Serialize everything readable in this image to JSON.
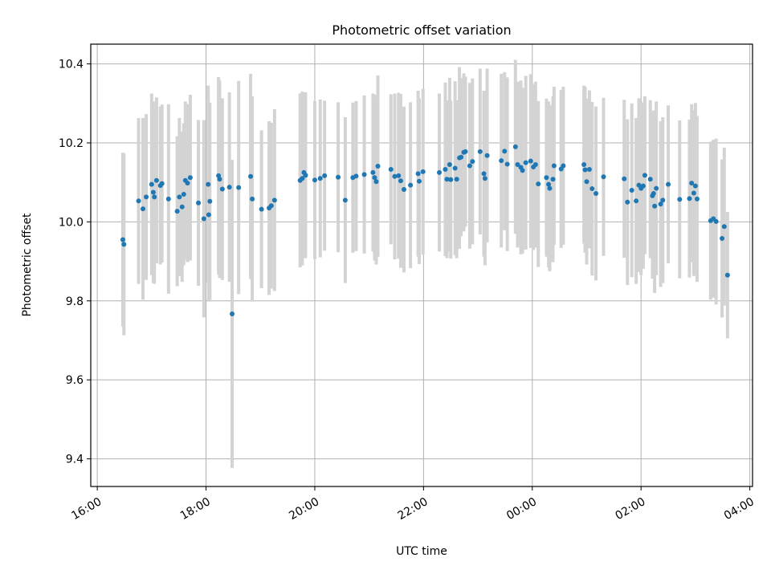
{
  "chart_data": {
    "type": "scatter",
    "title": "Photometric offset variation",
    "xlabel": "UTC time",
    "ylabel": "Photometric offset",
    "x_unit": "hours since 16:00 UTC (axis continues past midnight)",
    "xlim": [
      -0.12,
      12.05
    ],
    "ylim": [
      9.33,
      10.45
    ],
    "grid": true,
    "colors": {
      "points": "#1f77b4",
      "errorbars": "#d3d3d3",
      "grid": "#b0b0b0"
    },
    "x_ticks": [
      {
        "x": 0,
        "label": "16:00"
      },
      {
        "x": 2,
        "label": "18:00"
      },
      {
        "x": 4,
        "label": "20:00"
      },
      {
        "x": 6,
        "label": "22:00"
      },
      {
        "x": 8,
        "label": "00:00"
      },
      {
        "x": 10,
        "label": "02:00"
      },
      {
        "x": 12,
        "label": "04:00"
      }
    ],
    "y_ticks": [
      {
        "y": 9.4,
        "label": "9.4"
      },
      {
        "y": 9.6,
        "label": "9.6"
      },
      {
        "y": 9.8,
        "label": "9.8"
      },
      {
        "y": 10.0,
        "label": "10.0"
      },
      {
        "y": 10.2,
        "label": "10.2"
      },
      {
        "y": 10.4,
        "label": "10.4"
      }
    ],
    "points": [
      [
        0.47,
        9.955,
        0.22
      ],
      [
        0.49,
        9.943,
        0.23
      ],
      [
        0.76,
        10.053,
        0.21
      ],
      [
        0.84,
        10.033,
        0.23
      ],
      [
        0.9,
        10.063,
        0.21
      ],
      [
        1.0,
        10.095,
        0.23
      ],
      [
        1.03,
        10.075,
        0.23
      ],
      [
        1.05,
        10.063,
        0.22
      ],
      [
        1.09,
        10.105,
        0.21
      ],
      [
        1.16,
        10.092,
        0.2
      ],
      [
        1.19,
        10.097,
        0.2
      ],
      [
        1.31,
        10.058,
        0.24
      ],
      [
        1.47,
        10.027,
        0.19
      ],
      [
        1.51,
        10.063,
        0.2
      ],
      [
        1.56,
        10.038,
        0.19
      ],
      [
        1.59,
        10.07,
        0.18
      ],
      [
        1.62,
        10.105,
        0.2
      ],
      [
        1.66,
        10.098,
        0.2
      ],
      [
        1.71,
        10.112,
        0.21
      ],
      [
        1.86,
        10.048,
        0.21
      ],
      [
        1.96,
        10.008,
        0.25
      ],
      [
        2.05,
        10.018,
        0.22
      ],
      [
        2.07,
        10.052,
        0.25
      ],
      [
        2.04,
        10.095,
        0.25
      ],
      [
        2.23,
        10.117,
        0.25
      ],
      [
        2.25,
        10.108,
        0.25
      ],
      [
        2.3,
        10.083,
        0.23
      ],
      [
        2.43,
        10.088,
        0.24
      ],
      [
        2.48,
        9.767,
        0.39
      ],
      [
        2.6,
        10.087,
        0.27
      ],
      [
        2.82,
        10.115,
        0.26
      ],
      [
        2.85,
        10.058,
        0.26
      ],
      [
        3.02,
        10.032,
        0.2
      ],
      [
        3.16,
        10.035,
        0.22
      ],
      [
        3.2,
        10.041,
        0.21
      ],
      [
        3.26,
        10.055,
        0.23
      ],
      [
        3.73,
        10.105,
        0.22
      ],
      [
        3.77,
        10.11,
        0.22
      ],
      [
        3.8,
        10.125,
        0.2
      ],
      [
        3.83,
        10.118,
        0.21
      ],
      [
        4.0,
        10.106,
        0.2
      ],
      [
        4.1,
        10.11,
        0.2
      ],
      [
        4.18,
        10.117,
        0.19
      ],
      [
        4.43,
        10.113,
        0.19
      ],
      [
        4.56,
        10.055,
        0.21
      ],
      [
        4.7,
        10.112,
        0.19
      ],
      [
        4.76,
        10.116,
        0.19
      ],
      [
        4.91,
        10.12,
        0.2
      ],
      [
        5.07,
        10.125,
        0.2
      ],
      [
        5.1,
        10.112,
        0.21
      ],
      [
        5.13,
        10.102,
        0.21
      ],
      [
        5.16,
        10.141,
        0.23
      ],
      [
        5.4,
        10.133,
        0.19
      ],
      [
        5.47,
        10.115,
        0.21
      ],
      [
        5.54,
        10.117,
        0.21
      ],
      [
        5.58,
        10.104,
        0.22
      ],
      [
        5.64,
        10.082,
        0.21
      ],
      [
        5.76,
        10.093,
        0.21
      ],
      [
        5.9,
        10.122,
        0.21
      ],
      [
        5.92,
        10.103,
        0.21
      ],
      [
        5.99,
        10.127,
        0.21
      ],
      [
        6.29,
        10.125,
        0.2
      ],
      [
        6.4,
        10.133,
        0.22
      ],
      [
        6.43,
        10.108,
        0.2
      ],
      [
        6.48,
        10.145,
        0.22
      ],
      [
        6.5,
        10.107,
        0.2
      ],
      [
        6.58,
        10.136,
        0.22
      ],
      [
        6.61,
        10.108,
        0.2
      ],
      [
        6.66,
        10.162,
        0.23
      ],
      [
        6.69,
        10.164,
        0.2
      ],
      [
        6.74,
        10.176,
        0.2
      ],
      [
        6.77,
        10.178,
        0.19
      ],
      [
        6.85,
        10.142,
        0.21
      ],
      [
        6.9,
        10.153,
        0.21
      ],
      [
        7.04,
        10.178,
        0.21
      ],
      [
        7.11,
        10.122,
        0.21
      ],
      [
        7.13,
        10.11,
        0.22
      ],
      [
        7.17,
        10.168,
        0.22
      ],
      [
        7.43,
        10.155,
        0.22
      ],
      [
        7.49,
        10.179,
        0.2
      ],
      [
        7.54,
        10.146,
        0.22
      ],
      [
        7.69,
        10.19,
        0.22
      ],
      [
        7.73,
        10.145,
        0.21
      ],
      [
        7.79,
        10.138,
        0.22
      ],
      [
        7.82,
        10.13,
        0.21
      ],
      [
        7.88,
        10.15,
        0.22
      ],
      [
        7.97,
        10.154,
        0.22
      ],
      [
        8.02,
        10.139,
        0.21
      ],
      [
        8.06,
        10.145,
        0.21
      ],
      [
        8.11,
        10.096,
        0.21
      ],
      [
        8.26,
        10.112,
        0.2
      ],
      [
        8.32,
        10.085,
        0.21
      ],
      [
        8.3,
        10.095,
        0.21
      ],
      [
        8.38,
        10.108,
        0.21
      ],
      [
        8.4,
        10.142,
        0.2
      ],
      [
        8.53,
        10.134,
        0.2
      ],
      [
        8.57,
        10.142,
        0.2
      ],
      [
        8.95,
        10.145,
        0.2
      ],
      [
        8.97,
        10.132,
        0.21
      ],
      [
        9.0,
        10.102,
        0.21
      ],
      [
        9.05,
        10.133,
        0.2
      ],
      [
        9.1,
        10.084,
        0.22
      ],
      [
        9.17,
        10.072,
        0.22
      ],
      [
        9.31,
        10.114,
        0.2
      ],
      [
        9.69,
        10.109,
        0.2
      ],
      [
        9.75,
        10.05,
        0.21
      ],
      [
        9.83,
        10.08,
        0.22
      ],
      [
        9.91,
        10.053,
        0.21
      ],
      [
        9.96,
        10.093,
        0.22
      ],
      [
        10.0,
        10.085,
        0.22
      ],
      [
        10.04,
        10.091,
        0.21
      ],
      [
        10.07,
        10.118,
        0.2
      ],
      [
        10.17,
        10.108,
        0.2
      ],
      [
        10.21,
        10.066,
        0.21
      ],
      [
        10.23,
        10.072,
        0.21
      ],
      [
        10.25,
        10.04,
        0.22
      ],
      [
        10.28,
        10.085,
        0.22
      ],
      [
        10.36,
        10.045,
        0.21
      ],
      [
        10.4,
        10.055,
        0.21
      ],
      [
        10.5,
        10.095,
        0.2
      ],
      [
        10.71,
        10.057,
        0.2
      ],
      [
        10.89,
        10.059,
        0.2
      ],
      [
        10.93,
        10.098,
        0.2
      ],
      [
        10.97,
        10.073,
        0.21
      ],
      [
        11.0,
        10.091,
        0.21
      ],
      [
        11.03,
        10.058,
        0.21
      ],
      [
        11.28,
        10.003,
        0.2
      ],
      [
        11.33,
        10.008,
        0.2
      ],
      [
        11.38,
        10.001,
        0.21
      ],
      [
        11.49,
        9.958,
        0.2
      ],
      [
        11.53,
        9.988,
        0.2
      ],
      [
        11.59,
        9.865,
        0.16
      ]
    ]
  }
}
